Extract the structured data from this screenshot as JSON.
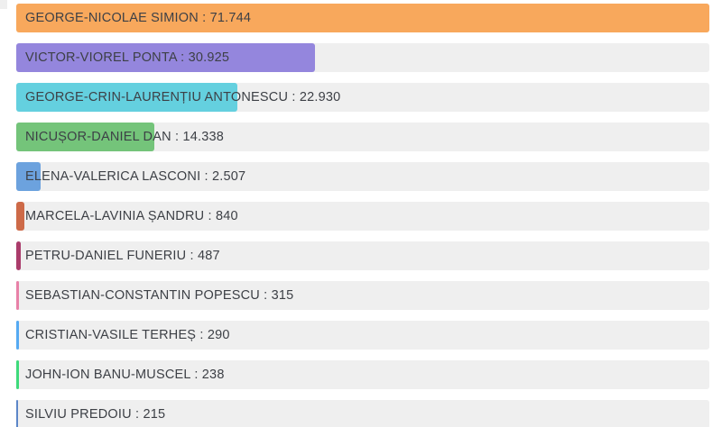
{
  "chart_data": {
    "type": "bar",
    "orientation": "horizontal",
    "title": "",
    "xlabel": "",
    "ylabel": "",
    "axis_max": 71744,
    "grid": false,
    "legend": false,
    "track_color": "#efefef",
    "background_color": "#ffffff",
    "label_text_color": "#3d4046",
    "categories": [
      "GEORGE-NICOLAE SIMION",
      "VICTOR-VIOREL PONTA",
      "GEORGE-CRIN-LAURENȚIU ANTONESCU",
      "NICUȘOR-DANIEL DAN",
      "ELENA-VALERICA LASCONI",
      "MARCELA-LAVINIA ȘANDRU",
      "PETRU-DANIEL FUNERIU",
      "SEBASTIAN-CONSTANTIN POPESCU",
      "CRISTIAN-VASILE TERHEȘ",
      "JOHN-ION BANU-MUSCEL",
      "SILVIU PREDOIU"
    ],
    "values": [
      71744,
      30925,
      22930,
      14338,
      2507,
      840,
      487,
      315,
      290,
      238,
      215
    ],
    "items": [
      {
        "name": "GEORGE-NICOLAE SIMION",
        "value": 71744,
        "value_display": "71.744",
        "label": "GEORGE-NICOLAE SIMION : 71.744",
        "color": "#f8a85c"
      },
      {
        "name": "VICTOR-VIOREL PONTA",
        "value": 30925,
        "value_display": "30.925",
        "label": "VICTOR-VIOREL PONTA : 30.925",
        "color": "#9486dd"
      },
      {
        "name": "GEORGE-CRIN-LAURENȚIU ANTONESCU",
        "value": 22930,
        "value_display": "22.930",
        "label": "GEORGE-CRIN-LAURENȚIU ANTONESCU : 22.930",
        "color": "#64d0df"
      },
      {
        "name": "NICUȘOR-DANIEL DAN",
        "value": 14338,
        "value_display": "14.338",
        "label": "NICUȘOR-DANIEL DAN : 14.338",
        "color": "#74c47a"
      },
      {
        "name": "ELENA-VALERICA LASCONI",
        "value": 2507,
        "value_display": "2.507",
        "label": "ELENA-VALERICA LASCONI : 2.507",
        "color": "#6ca2de"
      },
      {
        "name": "MARCELA-LAVINIA ȘANDRU",
        "value": 840,
        "value_display": "840",
        "label": "MARCELA-LAVINIA ȘANDRU : 840",
        "color": "#cd6a48"
      },
      {
        "name": "PETRU-DANIEL FUNERIU",
        "value": 487,
        "value_display": "487",
        "label": "PETRU-DANIEL FUNERIU : 487",
        "color": "#aa3c6b"
      },
      {
        "name": "SEBASTIAN-CONSTANTIN POPESCU",
        "value": 315,
        "value_display": "315",
        "label": "SEBASTIAN-CONSTANTIN POPESCU : 315",
        "color": "#e881a8"
      },
      {
        "name": "CRISTIAN-VASILE TERHEȘ",
        "value": 290,
        "value_display": "290",
        "label": "CRISTIAN-VASILE TERHEȘ : 290",
        "color": "#55aaf2"
      },
      {
        "name": "JOHN-ION BANU-MUSCEL",
        "value": 238,
        "value_display": "238",
        "label": "JOHN-ION BANU-MUSCEL : 238",
        "color": "#3eda7b"
      },
      {
        "name": "SILVIU PREDOIU",
        "value": 215,
        "value_display": "215",
        "label": "SILVIU PREDOIU : 215",
        "color": "#5c86c8"
      }
    ]
  }
}
